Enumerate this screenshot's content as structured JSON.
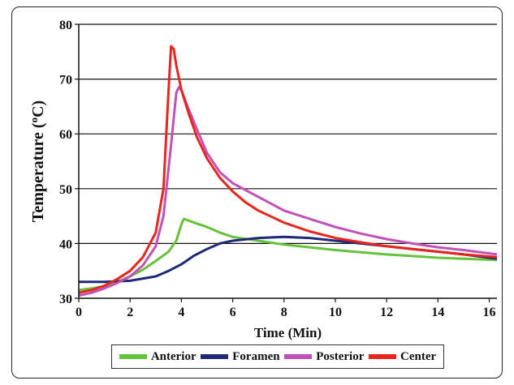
{
  "chart_data": {
    "type": "line",
    "xlabel": "Time (Min)",
    "ylabel": "Temperature (oC)",
    "ylabel_parts": [
      "Temperature (",
      "o",
      "C)"
    ],
    "xlim": [
      0,
      16.3
    ],
    "ylim": [
      30,
      80
    ],
    "xticks": [
      0,
      2,
      4,
      6,
      8,
      10,
      12,
      14,
      16
    ],
    "yticks": [
      30,
      40,
      50,
      60,
      70,
      80
    ],
    "grid": "horizontal",
    "legend_position": "bottom",
    "series": [
      {
        "name": "Anterior",
        "color": "#66c23a",
        "points": [
          [
            0,
            31.5
          ],
          [
            0.5,
            31.8
          ],
          [
            1,
            32.2
          ],
          [
            1.5,
            33.0
          ],
          [
            2,
            34.0
          ],
          [
            2.5,
            35.2
          ],
          [
            3,
            36.8
          ],
          [
            3.5,
            38.5
          ],
          [
            3.8,
            40.5
          ],
          [
            4.0,
            43.5
          ],
          [
            4.1,
            44.5
          ],
          [
            4.5,
            43.8
          ],
          [
            5,
            43.0
          ],
          [
            5.5,
            42.0
          ],
          [
            6,
            41.2
          ],
          [
            7,
            40.5
          ],
          [
            8,
            39.8
          ],
          [
            9,
            39.3
          ],
          [
            10,
            38.8
          ],
          [
            11,
            38.4
          ],
          [
            12,
            38.0
          ],
          [
            13,
            37.7
          ],
          [
            14,
            37.4
          ],
          [
            15,
            37.2
          ],
          [
            16.3,
            37.0
          ]
        ]
      },
      {
        "name": "Foramen",
        "color": "#1e2a78",
        "points": [
          [
            0,
            33.0
          ],
          [
            1,
            33.0
          ],
          [
            2,
            33.2
          ],
          [
            3,
            34.0
          ],
          [
            3.5,
            35.0
          ],
          [
            4,
            36.2
          ],
          [
            4.5,
            37.8
          ],
          [
            5,
            39.0
          ],
          [
            5.5,
            40.0
          ],
          [
            6,
            40.5
          ],
          [
            7,
            41.0
          ],
          [
            8,
            41.2
          ],
          [
            9,
            41.0
          ],
          [
            10,
            40.5
          ],
          [
            11,
            40.0
          ],
          [
            12,
            39.5
          ],
          [
            13,
            39.0
          ],
          [
            14,
            38.5
          ],
          [
            15,
            38.0
          ],
          [
            16.3,
            37.2
          ]
        ]
      },
      {
        "name": "Posterior",
        "color": "#c051b8",
        "points": [
          [
            0,
            30.5
          ],
          [
            0.5,
            31.0
          ],
          [
            1,
            31.8
          ],
          [
            1.5,
            32.8
          ],
          [
            2,
            34.0
          ],
          [
            2.5,
            36.0
          ],
          [
            3,
            39.5
          ],
          [
            3.3,
            45.0
          ],
          [
            3.6,
            58.0
          ],
          [
            3.8,
            67.5
          ],
          [
            3.9,
            68.5
          ],
          [
            4,
            68.0
          ],
          [
            4.2,
            65.5
          ],
          [
            4.5,
            62.0
          ],
          [
            5,
            56.5
          ],
          [
            5.5,
            53.0
          ],
          [
            6,
            51.0
          ],
          [
            7,
            48.5
          ],
          [
            8,
            46.0
          ],
          [
            9,
            44.5
          ],
          [
            10,
            43.0
          ],
          [
            11,
            41.8
          ],
          [
            12,
            40.8
          ],
          [
            13,
            40.0
          ],
          [
            14,
            39.3
          ],
          [
            15,
            38.8
          ],
          [
            16.3,
            38.0
          ]
        ]
      },
      {
        "name": "Center",
        "color": "#e8251c",
        "points": [
          [
            0,
            31.0
          ],
          [
            0.5,
            31.5
          ],
          [
            1,
            32.3
          ],
          [
            1.5,
            33.5
          ],
          [
            2,
            35.0
          ],
          [
            2.5,
            37.5
          ],
          [
            3,
            42.0
          ],
          [
            3.3,
            50.0
          ],
          [
            3.5,
            68.0
          ],
          [
            3.6,
            76.0
          ],
          [
            3.7,
            75.5
          ],
          [
            3.8,
            72.5
          ],
          [
            4,
            68.0
          ],
          [
            4.3,
            63.5
          ],
          [
            4.6,
            59.5
          ],
          [
            5,
            55.5
          ],
          [
            5.5,
            52.0
          ],
          [
            6,
            49.5
          ],
          [
            6.5,
            47.5
          ],
          [
            7,
            46.0
          ],
          [
            8,
            43.8
          ],
          [
            9,
            42.2
          ],
          [
            10,
            41.0
          ],
          [
            11,
            40.2
          ],
          [
            12,
            39.5
          ],
          [
            13,
            39.0
          ],
          [
            14,
            38.5
          ],
          [
            15,
            38.0
          ],
          [
            16.3,
            37.5
          ]
        ]
      }
    ]
  }
}
